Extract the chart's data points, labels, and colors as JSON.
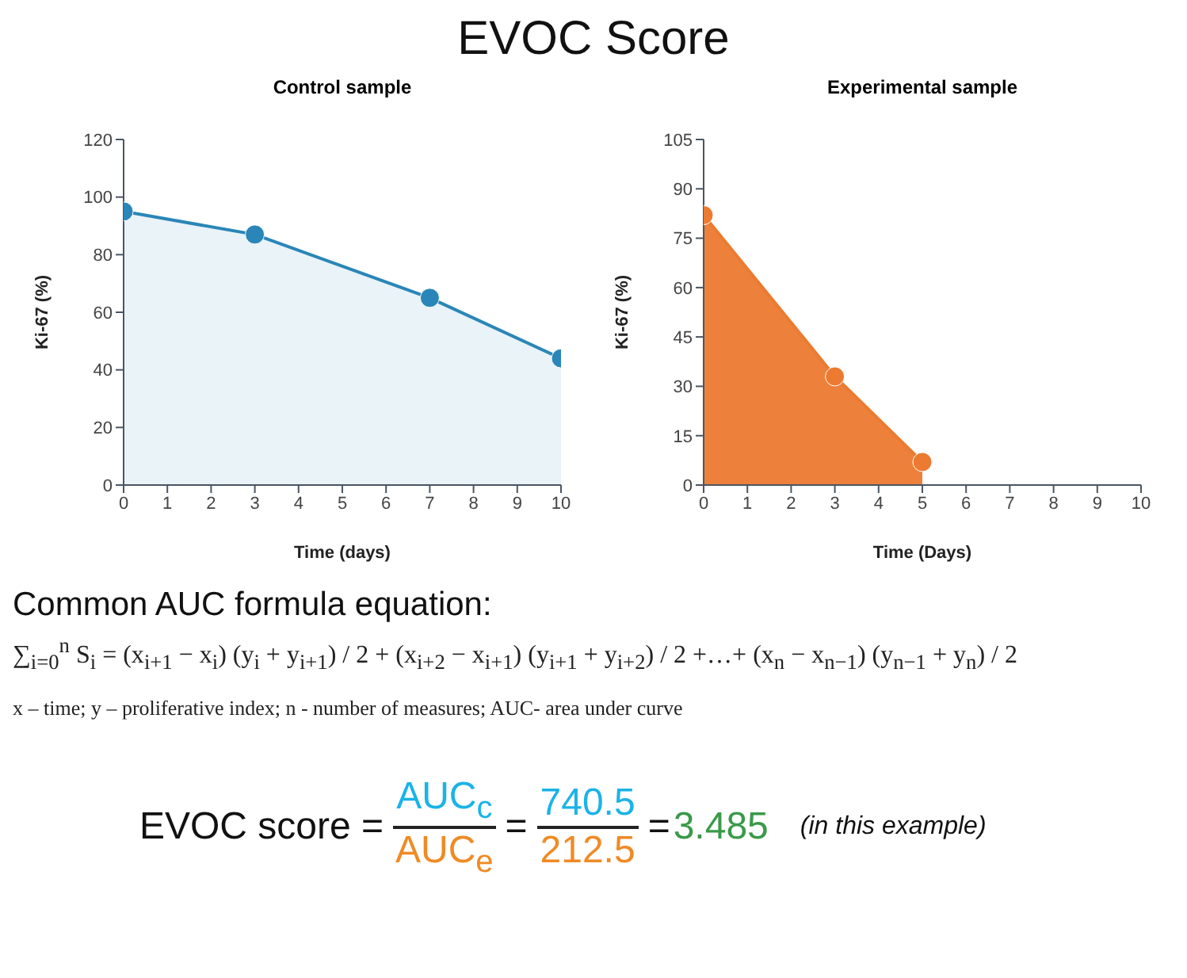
{
  "chart_data": [
    {
      "type": "area",
      "title": "Control sample",
      "xlabel": "Time (days)",
      "ylabel": "Ki-67 (%)",
      "x": [
        0,
        3,
        7,
        10
      ],
      "series": [
        {
          "color": "#2a86b8",
          "values": [
            95,
            87,
            65,
            44
          ]
        }
      ],
      "xlim": [
        0,
        10
      ],
      "xticks": [
        0,
        1,
        2,
        3,
        4,
        5,
        6,
        7,
        8,
        9,
        10
      ],
      "ylim": [
        0,
        120
      ],
      "yticks": [
        0,
        20,
        40,
        60,
        80,
        100,
        120
      ],
      "marker": "circle",
      "grid": false,
      "legend": false
    },
    {
      "type": "area",
      "title": "Experimental sample",
      "xlabel": "Time (Days)",
      "ylabel": "Ki-67 (%)",
      "x": [
        0,
        3,
        5
      ],
      "series": [
        {
          "color": "#ec7a30",
          "values": [
            82,
            33,
            7
          ]
        }
      ],
      "xlim": [
        0,
        10
      ],
      "xticks": [
        0,
        1,
        2,
        3,
        4,
        5,
        6,
        7,
        8,
        9,
        10
      ],
      "ylim": [
        0,
        105
      ],
      "yticks": [
        0,
        15,
        30,
        45,
        60,
        75,
        90,
        105
      ],
      "marker": "circle",
      "grid": false,
      "legend": false
    },
    {
      "type": "other",
      "title": "EVOC Score",
      "annotations": [
        "Common AUC formula equation:",
        "∑$_{i=0}$$^{n}$ S$_{i}$ = (x$_{i+1}$ − x$_{i}$) (y$_{i}$ + y$_{i+1}$) / 2 + (x$_{i+2}$ − x$_{i+1}$) (y$_{i+1}$ + y$_{i+2}$) / 2 +…+ (x$_{n}$ − x$_{n−1}$) (y$_{n−1}$ + y$_{n}$) / 2",
        "x – time; y – proliferative index; n - number of measures; AUC- area under curve",
        "EVOC score =",
        "AUC$_{c}$",
        "AUC$_{e}$",
        "=",
        "740.5",
        "212.5",
        "=",
        "3.485",
        "(in this example)"
      ]
    }
  ]
}
